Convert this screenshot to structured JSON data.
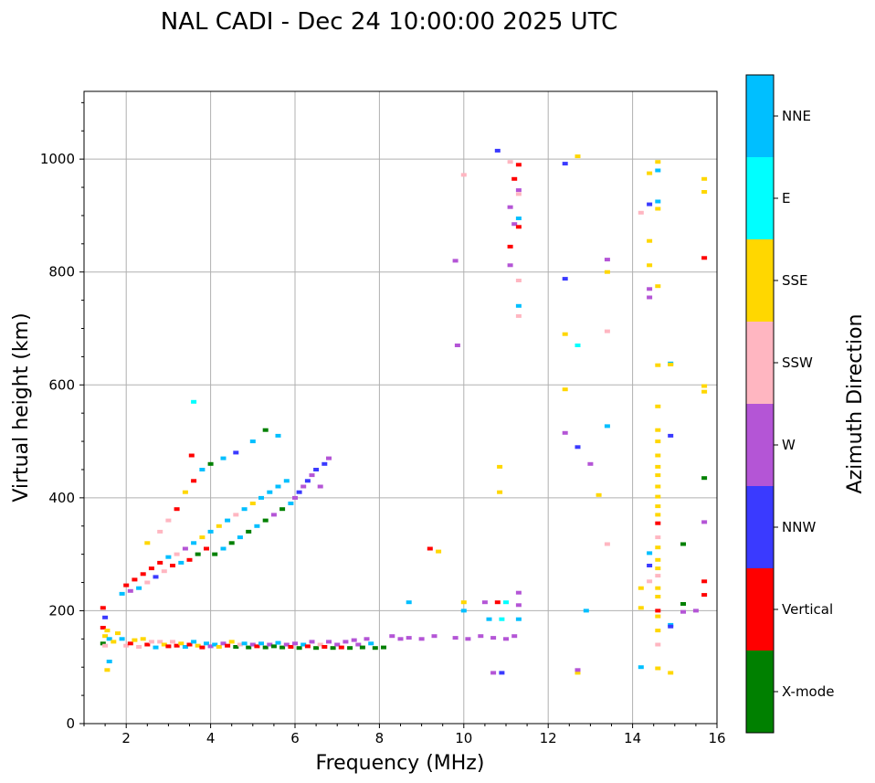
{
  "chart_data": {
    "type": "scatter",
    "title": "NAL CADI - Dec 24 10:00:00 2025 UTC",
    "xlabel": "Frequency (MHz)",
    "ylabel": "Virtual height (km)",
    "xlim": [
      1,
      16
    ],
    "ylim": [
      0,
      1120
    ],
    "x_ticks": [
      2,
      4,
      6,
      8,
      10,
      12,
      14,
      16
    ],
    "y_ticks": [
      0,
      200,
      400,
      600,
      800,
      1000
    ],
    "grid": true,
    "colorbar": {
      "label": "Azimuth Direction",
      "categories": [
        {
          "name": "X-mode",
          "color": "#008000"
        },
        {
          "name": "Vertical",
          "color": "#ff0000"
        },
        {
          "name": "NNW",
          "color": "#3a3aff"
        },
        {
          "name": "W",
          "color": "#b455d6"
        },
        {
          "name": "SSW",
          "color": "#ffb6c1"
        },
        {
          "name": "SSE",
          "color": "#ffd700"
        },
        {
          "name": "E",
          "color": "#00ffff"
        },
        {
          "name": "NNE",
          "color": "#00bfff"
        }
      ]
    },
    "points": [
      [
        1.45,
        205,
        "Vertical"
      ],
      [
        1.5,
        188,
        "NNW"
      ],
      [
        1.45,
        170,
        "Vertical"
      ],
      [
        1.55,
        165,
        "SSE"
      ],
      [
        1.5,
        155,
        "SSE"
      ],
      [
        1.6,
        150,
        "NNE"
      ],
      [
        1.45,
        142,
        "X-mode"
      ],
      [
        1.5,
        138,
        "SSW"
      ],
      [
        1.7,
        145,
        "SSE"
      ],
      [
        1.8,
        160,
        "SSE"
      ],
      [
        1.9,
        150,
        "NNE"
      ],
      [
        2.0,
        138,
        "SSW"
      ],
      [
        2.1,
        142,
        "Vertical"
      ],
      [
        2.2,
        148,
        "SSE"
      ],
      [
        2.3,
        136,
        "SSW"
      ],
      [
        2.4,
        150,
        "SSE"
      ],
      [
        2.5,
        140,
        "Vertical"
      ],
      [
        2.6,
        145,
        "SSW"
      ],
      [
        2.7,
        135,
        "NNE"
      ],
      [
        2.8,
        145,
        "SSW"
      ],
      [
        2.9,
        140,
        "SSE"
      ],
      [
        3.0,
        137,
        "Vertical"
      ],
      [
        3.1,
        145,
        "SSW"
      ],
      [
        3.2,
        138,
        "Vertical"
      ],
      [
        3.3,
        142,
        "SSE"
      ],
      [
        3.4,
        136,
        "NNE"
      ],
      [
        3.5,
        140,
        "Vertical"
      ],
      [
        3.6,
        145,
        "NNE"
      ],
      [
        3.7,
        138,
        "SSE"
      ],
      [
        3.8,
        135,
        "Vertical"
      ],
      [
        3.9,
        142,
        "NNE"
      ],
      [
        4.0,
        137,
        "W"
      ],
      [
        4.1,
        140,
        "NNE"
      ],
      [
        4.2,
        136,
        "SSE"
      ],
      [
        4.3,
        142,
        "W"
      ],
      [
        4.4,
        138,
        "Vertical"
      ],
      [
        4.5,
        145,
        "SSE"
      ],
      [
        4.6,
        136,
        "X-mode"
      ],
      [
        4.7,
        140,
        "SSW"
      ],
      [
        4.8,
        142,
        "NNE"
      ],
      [
        4.9,
        135,
        "X-mode"
      ],
      [
        5.0,
        140,
        "W"
      ],
      [
        5.1,
        137,
        "Vertical"
      ],
      [
        5.2,
        142,
        "NNE"
      ],
      [
        5.3,
        135,
        "X-mode"
      ],
      [
        5.4,
        140,
        "W"
      ],
      [
        5.5,
        137,
        "X-mode"
      ],
      [
        5.6,
        143,
        "NNE"
      ],
      [
        5.7,
        135,
        "X-mode"
      ],
      [
        5.8,
        140,
        "W"
      ],
      [
        5.9,
        136,
        "Vertical"
      ],
      [
        6.0,
        142,
        "W"
      ],
      [
        6.1,
        134,
        "X-mode"
      ],
      [
        6.2,
        140,
        "NNE"
      ],
      [
        6.3,
        137,
        "Vertical"
      ],
      [
        6.4,
        145,
        "W"
      ],
      [
        6.5,
        134,
        "X-mode"
      ],
      [
        6.6,
        140,
        "SSW"
      ],
      [
        6.7,
        136,
        "Vertical"
      ],
      [
        6.8,
        145,
        "W"
      ],
      [
        6.9,
        134,
        "X-mode"
      ],
      [
        7.0,
        140,
        "W"
      ],
      [
        7.1,
        135,
        "Vertical"
      ],
      [
        7.2,
        145,
        "W"
      ],
      [
        7.3,
        134,
        "X-mode"
      ],
      [
        7.4,
        148,
        "W"
      ],
      [
        7.5,
        140,
        "W"
      ],
      [
        7.6,
        135,
        "X-mode"
      ],
      [
        7.7,
        150,
        "W"
      ],
      [
        7.8,
        142,
        "NNE"
      ],
      [
        7.9,
        134,
        "X-mode"
      ],
      [
        8.1,
        135,
        "X-mode"
      ],
      [
        8.3,
        155,
        "W"
      ],
      [
        8.5,
        150,
        "W"
      ],
      [
        8.7,
        152,
        "W"
      ],
      [
        9.0,
        150,
        "W"
      ],
      [
        9.3,
        155,
        "W"
      ],
      [
        9.8,
        152,
        "W"
      ],
      [
        10.1,
        150,
        "W"
      ],
      [
        10.4,
        155,
        "W"
      ],
      [
        10.7,
        152,
        "W"
      ],
      [
        11.0,
        150,
        "W"
      ],
      [
        11.2,
        155,
        "W"
      ],
      [
        1.9,
        230,
        "NNE"
      ],
      [
        2.0,
        245,
        "Vertical"
      ],
      [
        2.1,
        235,
        "W"
      ],
      [
        2.2,
        255,
        "Vertical"
      ],
      [
        2.3,
        240,
        "NNE"
      ],
      [
        2.4,
        265,
        "Vertical"
      ],
      [
        2.5,
        250,
        "SSW"
      ],
      [
        2.6,
        275,
        "Vertical"
      ],
      [
        2.7,
        260,
        "NNW"
      ],
      [
        2.8,
        285,
        "Vertical"
      ],
      [
        2.9,
        270,
        "SSW"
      ],
      [
        3.0,
        295,
        "NNE"
      ],
      [
        3.1,
        280,
        "Vertical"
      ],
      [
        3.2,
        300,
        "SSW"
      ],
      [
        3.3,
        285,
        "NNE"
      ],
      [
        3.4,
        310,
        "W"
      ],
      [
        3.5,
        290,
        "Vertical"
      ],
      [
        3.6,
        320,
        "NNE"
      ],
      [
        3.7,
        300,
        "X-mode"
      ],
      [
        3.8,
        330,
        "SSE"
      ],
      [
        3.9,
        310,
        "Vertical"
      ],
      [
        4.0,
        340,
        "NNE"
      ],
      [
        4.1,
        300,
        "X-mode"
      ],
      [
        4.2,
        350,
        "SSE"
      ],
      [
        4.3,
        310,
        "NNE"
      ],
      [
        4.4,
        360,
        "NNE"
      ],
      [
        4.5,
        320,
        "X-mode"
      ],
      [
        4.6,
        370,
        "SSW"
      ],
      [
        4.7,
        330,
        "NNE"
      ],
      [
        4.8,
        380,
        "NNE"
      ],
      [
        4.9,
        340,
        "X-mode"
      ],
      [
        5.0,
        390,
        "SSE"
      ],
      [
        5.1,
        350,
        "NNE"
      ],
      [
        5.2,
        400,
        "NNE"
      ],
      [
        5.3,
        360,
        "X-mode"
      ],
      [
        5.4,
        410,
        "NNE"
      ],
      [
        5.5,
        370,
        "W"
      ],
      [
        5.6,
        420,
        "NNE"
      ],
      [
        5.7,
        380,
        "X-mode"
      ],
      [
        5.8,
        430,
        "NNE"
      ],
      [
        5.9,
        390,
        "NNE"
      ],
      [
        6.0,
        400,
        "W"
      ],
      [
        6.1,
        410,
        "NNW"
      ],
      [
        6.2,
        420,
        "W"
      ],
      [
        6.3,
        430,
        "NNW"
      ],
      [
        6.4,
        440,
        "W"
      ],
      [
        6.5,
        450,
        "NNW"
      ],
      [
        6.6,
        420,
        "W"
      ],
      [
        6.7,
        460,
        "NNW"
      ],
      [
        6.8,
        470,
        "W"
      ],
      [
        2.5,
        320,
        "SSE"
      ],
      [
        2.8,
        340,
        "SSW"
      ],
      [
        3.0,
        360,
        "SSW"
      ],
      [
        3.2,
        380,
        "Vertical"
      ],
      [
        3.4,
        410,
        "SSE"
      ],
      [
        3.6,
        430,
        "Vertical"
      ],
      [
        3.8,
        450,
        "NNE"
      ],
      [
        4.0,
        460,
        "X-mode"
      ],
      [
        4.3,
        470,
        "NNE"
      ],
      [
        4.6,
        480,
        "NNW"
      ],
      [
        5.0,
        500,
        "NNE"
      ],
      [
        5.3,
        520,
        "X-mode"
      ],
      [
        5.6,
        510,
        "NNE"
      ],
      [
        3.6,
        570,
        "E"
      ],
      [
        3.55,
        475,
        "Vertical"
      ],
      [
        1.6,
        110,
        "NNE"
      ],
      [
        1.55,
        95,
        "SSE"
      ],
      [
        9.2,
        310,
        "Vertical"
      ],
      [
        9.4,
        305,
        "SSE"
      ],
      [
        8.7,
        215,
        "NNE"
      ],
      [
        10.0,
        215,
        "SSE"
      ],
      [
        10.5,
        215,
        "W"
      ],
      [
        10.8,
        215,
        "Vertical"
      ],
      [
        11.0,
        215,
        "E"
      ],
      [
        11.3,
        210,
        "W"
      ],
      [
        11.3,
        232,
        "W"
      ],
      [
        10.7,
        90,
        "W"
      ],
      [
        10.9,
        90,
        "NNW"
      ],
      [
        10.0,
        200,
        "NNE"
      ],
      [
        10.6,
        185,
        "NNE"
      ],
      [
        10.9,
        185,
        "E"
      ],
      [
        11.3,
        185,
        "NNE"
      ],
      [
        10.85,
        455,
        "SSE"
      ],
      [
        10.85,
        410,
        "SSE"
      ],
      [
        10.8,
        1015,
        "NNW"
      ],
      [
        11.1,
        995,
        "SSW"
      ],
      [
        11.3,
        990,
        "Vertical"
      ],
      [
        11.2,
        965,
        "Vertical"
      ],
      [
        11.3,
        945,
        "W"
      ],
      [
        11.3,
        938,
        "SSW"
      ],
      [
        11.1,
        915,
        "W"
      ],
      [
        11.3,
        895,
        "NNE"
      ],
      [
        11.2,
        885,
        "W"
      ],
      [
        11.3,
        880,
        "Vertical"
      ],
      [
        11.1,
        845,
        "Vertical"
      ],
      [
        11.1,
        812,
        "W"
      ],
      [
        11.3,
        785,
        "SSW"
      ],
      [
        11.3,
        740,
        "NNE"
      ],
      [
        11.3,
        722,
        "SSW"
      ],
      [
        9.8,
        820,
        "W"
      ],
      [
        9.85,
        670,
        "W"
      ],
      [
        10.0,
        972,
        "SSW"
      ],
      [
        12.4,
        992,
        "NNW"
      ],
      [
        12.7,
        1005,
        "SSE"
      ],
      [
        12.4,
        788,
        "NNW"
      ],
      [
        12.4,
        690,
        "SSE"
      ],
      [
        12.7,
        670,
        "E"
      ],
      [
        12.4,
        592,
        "SSE"
      ],
      [
        12.4,
        515,
        "W"
      ],
      [
        12.7,
        490,
        "NNW"
      ],
      [
        13.0,
        460,
        "W"
      ],
      [
        13.2,
        405,
        "SSE"
      ],
      [
        13.4,
        527,
        "NNE"
      ],
      [
        13.4,
        318,
        "SSW"
      ],
      [
        13.4,
        695,
        "SSW"
      ],
      [
        13.4,
        800,
        "SSE"
      ],
      [
        13.4,
        822,
        "W"
      ],
      [
        12.9,
        200,
        "NNE"
      ],
      [
        12.7,
        90,
        "SSE"
      ],
      [
        12.7,
        95,
        "W"
      ],
      [
        14.2,
        905,
        "SSW"
      ],
      [
        14.4,
        252,
        "SSW"
      ],
      [
        14.4,
        302,
        "NNE"
      ],
      [
        14.4,
        280,
        "NNW"
      ],
      [
        14.2,
        240,
        "SSE"
      ],
      [
        14.2,
        205,
        "SSE"
      ],
      [
        14.2,
        100,
        "NNE"
      ],
      [
        14.4,
        855,
        "SSE"
      ],
      [
        14.4,
        812,
        "SSE"
      ],
      [
        14.4,
        770,
        "W"
      ],
      [
        14.4,
        755,
        "W"
      ],
      [
        14.4,
        975,
        "SSE"
      ],
      [
        14.4,
        920,
        "NNW"
      ],
      [
        14.6,
        995,
        "SSE"
      ],
      [
        14.6,
        980,
        "NNE"
      ],
      [
        14.6,
        925,
        "NNE"
      ],
      [
        14.6,
        912,
        "SSE"
      ],
      [
        14.6,
        775,
        "SSE"
      ],
      [
        14.6,
        635,
        "SSE"
      ],
      [
        14.6,
        562,
        "SSE"
      ],
      [
        14.6,
        520,
        "SSE"
      ],
      [
        14.6,
        500,
        "SSE"
      ],
      [
        14.6,
        475,
        "SSE"
      ],
      [
        14.6,
        455,
        "SSE"
      ],
      [
        14.6,
        440,
        "SSE"
      ],
      [
        14.6,
        420,
        "SSE"
      ],
      [
        14.6,
        402,
        "SSE"
      ],
      [
        14.6,
        385,
        "SSE"
      ],
      [
        14.6,
        370,
        "SSE"
      ],
      [
        14.6,
        355,
        "Vertical"
      ],
      [
        14.6,
        330,
        "SSW"
      ],
      [
        14.6,
        312,
        "SSE"
      ],
      [
        14.6,
        290,
        "SSE"
      ],
      [
        14.6,
        275,
        "SSE"
      ],
      [
        14.6,
        262,
        "SSW"
      ],
      [
        14.6,
        240,
        "SSE"
      ],
      [
        14.6,
        225,
        "SSE"
      ],
      [
        14.6,
        200,
        "Vertical"
      ],
      [
        14.6,
        190,
        "SSE"
      ],
      [
        14.6,
        165,
        "SSE"
      ],
      [
        14.6,
        140,
        "SSW"
      ],
      [
        14.6,
        98,
        "SSE"
      ],
      [
        14.9,
        638,
        "NNE"
      ],
      [
        14.9,
        636,
        "SSE"
      ],
      [
        14.9,
        510,
        "NNW"
      ],
      [
        14.9,
        175,
        "NNE"
      ],
      [
        14.9,
        172,
        "NNW"
      ],
      [
        14.9,
        90,
        "SSE"
      ],
      [
        15.2,
        318,
        "X-mode"
      ],
      [
        15.2,
        212,
        "X-mode"
      ],
      [
        15.2,
        198,
        "W"
      ],
      [
        15.7,
        965,
        "SSE"
      ],
      [
        15.7,
        942,
        "SSE"
      ],
      [
        15.7,
        825,
        "Vertical"
      ],
      [
        15.7,
        598,
        "SSE"
      ],
      [
        15.7,
        588,
        "SSE"
      ],
      [
        15.7,
        435,
        "X-mode"
      ],
      [
        15.7,
        357,
        "W"
      ],
      [
        15.7,
        252,
        "Vertical"
      ],
      [
        15.7,
        228,
        "Vertical"
      ],
      [
        15.5,
        200,
        "W"
      ]
    ]
  }
}
